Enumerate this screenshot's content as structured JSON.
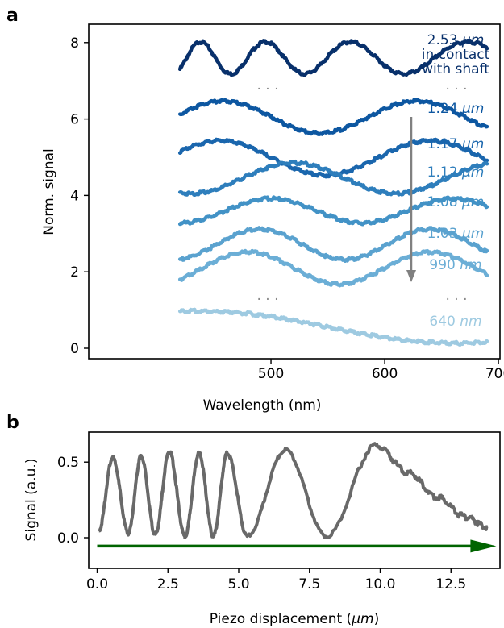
{
  "panel_a_letter": "a",
  "panel_b_letter": "b",
  "chart_data": [
    {
      "type": "line",
      "panel": "a",
      "xlabel": "Wavelength (nm)",
      "ylabel": "Norm. signal",
      "xlim": [
        420,
        700
      ],
      "ylim": [
        -0.3,
        8.4
      ],
      "xticks": [
        500,
        600,
        700
      ],
      "yticks": [
        0,
        2,
        4,
        6,
        8
      ],
      "grid": false,
      "separator_dots": "· · ·",
      "arrow_color": "#808080",
      "series": [
        {
          "name": "2.53 μm in contact with shaft",
          "color": "#08306b",
          "baseline": 7.6,
          "amp": 0.42,
          "period": 48,
          "phase": 438,
          "x": [
            420,
            690
          ]
        },
        {
          "name": "1.24 μm",
          "color": "#0d57a1",
          "baseline": 6.05,
          "amp": 0.42,
          "period": 170,
          "phase": 458,
          "x": [
            420,
            690
          ]
        },
        {
          "name": "1.17 μm",
          "color": "#1a66ad",
          "baseline": 4.98,
          "amp": 0.45,
          "period": 185,
          "phase": 455,
          "x": [
            420,
            690
          ]
        },
        {
          "name": "1.12 μm",
          "color": "#2e7ebc",
          "baseline": 4.45,
          "amp": 0.4,
          "period": 180,
          "phase": 520,
          "x": [
            420,
            690
          ]
        },
        {
          "name": "1.08 μm",
          "color": "#4292c6",
          "baseline": 3.6,
          "amp": 0.32,
          "period": 160,
          "phase": 500,
          "x": [
            420,
            690
          ]
        },
        {
          "name": "1.03 μm",
          "color": "#5aa2cf",
          "baseline": 2.72,
          "amp": 0.4,
          "period": 150,
          "phase": 490,
          "x": [
            420,
            690
          ]
        },
        {
          "name": "990 nm",
          "color": "#6baed6",
          "baseline": 2.1,
          "amp": 0.42,
          "period": 160,
          "phase": 480,
          "x": [
            420,
            690
          ]
        },
        {
          "name": "640 nm",
          "color": "#9ecae1",
          "baseline": 0.58,
          "amp": 0.4,
          "period": 440,
          "phase": 440,
          "x": [
            420,
            690
          ]
        }
      ],
      "labels": [
        {
          "value": "2.53",
          "unit": "μm",
          "extra": [
            "in contact",
            "with shaft"
          ],
          "color": "#08306b"
        },
        {
          "value": "1.24",
          "unit": "μm",
          "color": "#0d57a1"
        },
        {
          "value": "1.17",
          "unit": "μm",
          "color": "#1a66ad"
        },
        {
          "value": "1.12",
          "unit": "μm",
          "color": "#2e7ebc"
        },
        {
          "value": "1.08",
          "unit": "μm",
          "color": "#4292c6"
        },
        {
          "value": "1.03",
          "unit": "μm",
          "color": "#5aa2cf"
        },
        {
          "value": "990",
          "unit": "nm",
          "color": "#6baed6"
        },
        {
          "value": "640",
          "unit": "nm",
          "color": "#9ecae1"
        }
      ]
    },
    {
      "type": "line",
      "panel": "b",
      "xlabel_prefix": "Piezo displacement (",
      "xlabel_unit": "μm",
      "xlabel_suffix": ")",
      "ylabel": "Signal (a.u.)",
      "xlim": [
        -0.4,
        14.2
      ],
      "ylim": [
        -0.19,
        0.68
      ],
      "xticks": [
        0.0,
        2.5,
        5.0,
        7.5,
        10.0,
        12.5
      ],
      "xtick_labels": [
        "0.0",
        "2.5",
        "5.0",
        "7.5",
        "10.0",
        "12.5"
      ],
      "yticks": [
        0.0,
        0.5
      ],
      "ytick_labels": [
        "0.0",
        "0.5"
      ],
      "grid": false,
      "series": [
        {
          "name": "",
          "color": "#696969"
        }
      ],
      "peaks": [
        {
          "x": 0.55,
          "y": 0.53
        },
        {
          "x": 1.55,
          "y": 0.54
        },
        {
          "x": 2.55,
          "y": 0.57
        },
        {
          "x": 3.6,
          "y": 0.56
        },
        {
          "x": 4.6,
          "y": 0.56
        },
        {
          "x": 6.65,
          "y": 0.58
        },
        {
          "x": 9.85,
          "y": 0.61
        }
      ],
      "troughs": [
        {
          "x": 0.05,
          "y": 0.04
        },
        {
          "x": 1.1,
          "y": 0.03
        },
        {
          "x": 2.05,
          "y": 0.02
        },
        {
          "x": 3.1,
          "y": 0.01
        },
        {
          "x": 4.1,
          "y": 0.01
        },
        {
          "x": 5.3,
          "y": 0.01
        },
        {
          "x": 8.1,
          "y": 0.01
        }
      ],
      "tail": [
        {
          "x": 11.0,
          "y": 0.43
        },
        {
          "x": 12.0,
          "y": 0.27
        },
        {
          "x": 13.0,
          "y": 0.14
        },
        {
          "x": 13.8,
          "y": 0.07
        }
      ],
      "arrow": {
        "x_start": 0.0,
        "x_end": 14.1,
        "y": -0.055,
        "color": "#006400"
      }
    }
  ]
}
